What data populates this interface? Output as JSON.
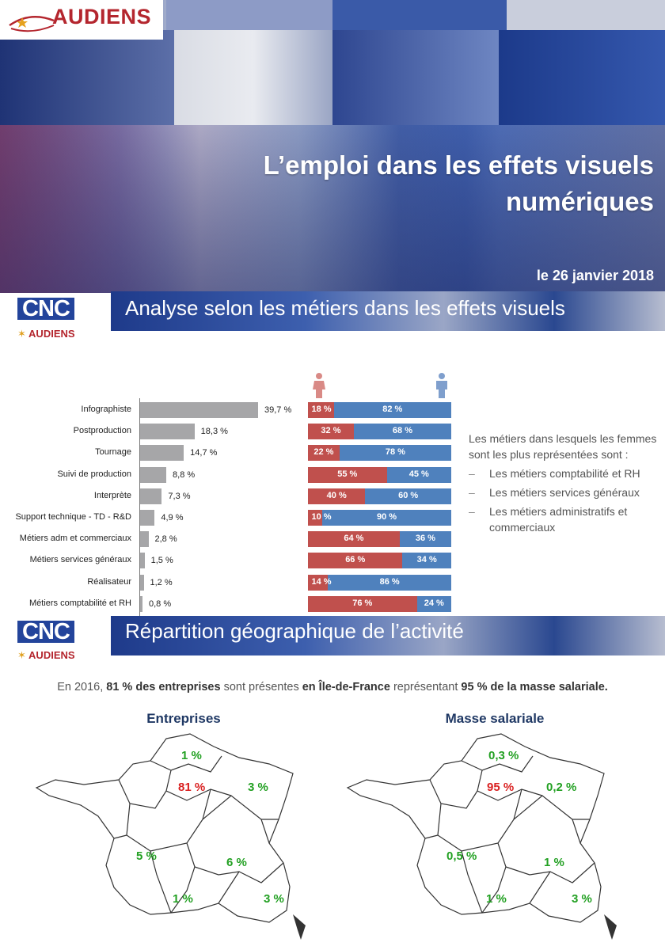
{
  "header": {
    "brand": "AUDIENS",
    "title_line1": "L’emploi dans les effets visuels",
    "title_line2": "numériques",
    "date": "le 26 janvier 2018"
  },
  "section1": {
    "cnc": "CNC",
    "audiens": "AUDIENS",
    "title": "Analyse selon les métiers dans les effets visuels"
  },
  "jobs": [
    {
      "label": "Infographiste",
      "pct": 39.7,
      "pct_label": "39,7 %",
      "female": 18,
      "male": 82,
      "female_label": "18 %",
      "male_label": "82 %"
    },
    {
      "label": "Postproduction",
      "pct": 18.3,
      "pct_label": "18,3 %",
      "female": 32,
      "male": 68,
      "female_label": "32 %",
      "male_label": "68 %"
    },
    {
      "label": "Tournage",
      "pct": 14.7,
      "pct_label": "14,7 %",
      "female": 22,
      "male": 78,
      "female_label": "22 %",
      "male_label": "78 %"
    },
    {
      "label": "Suivi de production",
      "pct": 8.8,
      "pct_label": "8,8 %",
      "female": 55,
      "male": 45,
      "female_label": "55 %",
      "male_label": "45 %"
    },
    {
      "label": "Interprète",
      "pct": 7.3,
      "pct_label": "7,3 %",
      "female": 40,
      "male": 60,
      "female_label": "40 %",
      "male_label": "60 %"
    },
    {
      "label": "Support technique - TD - R&D",
      "pct": 4.9,
      "pct_label": "4,9 %",
      "female": 10,
      "male": 90,
      "female_label": "10 %",
      "male_label": "90 %"
    },
    {
      "label": "Métiers adm et commerciaux",
      "pct": 2.8,
      "pct_label": "2,8 %",
      "female": 64,
      "male": 36,
      "female_label": "64 %",
      "male_label": "36 %"
    },
    {
      "label": "Métiers services généraux",
      "pct": 1.5,
      "pct_label": "1,5 %",
      "female": 66,
      "male": 34,
      "female_label": "66 %",
      "male_label": "34 %"
    },
    {
      "label": "Réalisateur",
      "pct": 1.2,
      "pct_label": "1,2 %",
      "female": 14,
      "male": 86,
      "female_label": "14 %",
      "male_label": "86 %"
    },
    {
      "label": "Métiers comptabilité et RH",
      "pct": 0.8,
      "pct_label": "0,8 %",
      "female": 76,
      "male": 24,
      "female_label": "76 %",
      "male_label": "24 %"
    }
  ],
  "note": {
    "intro": "Les métiers dans lesquels les femmes sont les plus représentées sont :",
    "items": [
      "Les métiers comptabilité et RH",
      "Les métiers services généraux",
      "Les métiers administratifs et commerciaux"
    ]
  },
  "section2": {
    "cnc": "CNC",
    "audiens": "AUDIENS",
    "title": "Répartition géographique de l’activité"
  },
  "summary": {
    "p1": "En 2016, ",
    "b1": "81 % des entreprises",
    "p2": " sont présentes ",
    "b2": "en Île-de-France",
    "p3": " représentant ",
    "b3": "95 % de la masse salariale."
  },
  "maps": {
    "left": {
      "title": "Entreprises",
      "north": "1 %",
      "idf": "81 %",
      "east": "3 %",
      "west": "5 %",
      "center": "6 %",
      "south": "1 %",
      "southeast": "3 %"
    },
    "right": {
      "title": "Masse salariale",
      "north": "0,3 %",
      "idf": "95 %",
      "east": "0,2 %",
      "west": "0,5 %",
      "center": "1 %",
      "south": "1 %",
      "southeast": "3 %"
    }
  },
  "colors": {
    "female": "#c0504d",
    "male": "#4f81bd",
    "bar": "#a6a6a8",
    "brand_red": "#b4262e"
  }
}
